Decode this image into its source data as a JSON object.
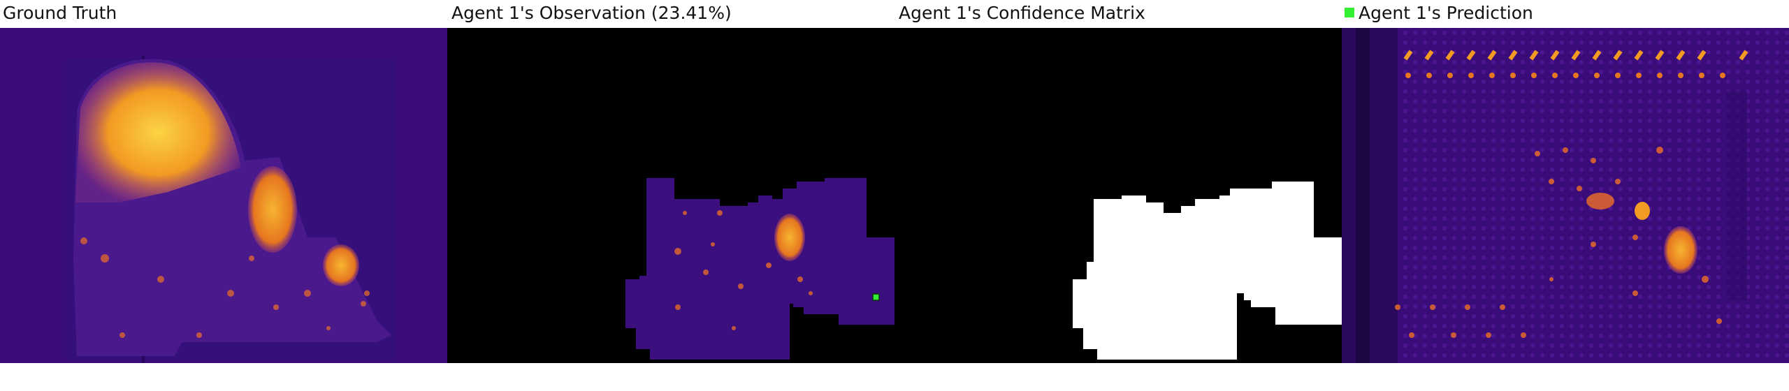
{
  "panels": {
    "ground_truth": {
      "title": "Ground Truth"
    },
    "observation": {
      "title": "Agent 1's Observation (23.41%)"
    },
    "confidence": {
      "title": "Agent 1's Confidence Matrix"
    },
    "prediction": {
      "title": "Agent 1's Prediction",
      "legend_color": "#33ee33"
    }
  },
  "colors": {
    "background_purple": "#3a0c7a",
    "dark_purple": "#2a0a5e",
    "heat_orange": "#f28a1f",
    "heat_yellow": "#f9c233",
    "mask_black": "#000000",
    "mask_white": "#ffffff",
    "agent_marker": "#33ee33"
  }
}
